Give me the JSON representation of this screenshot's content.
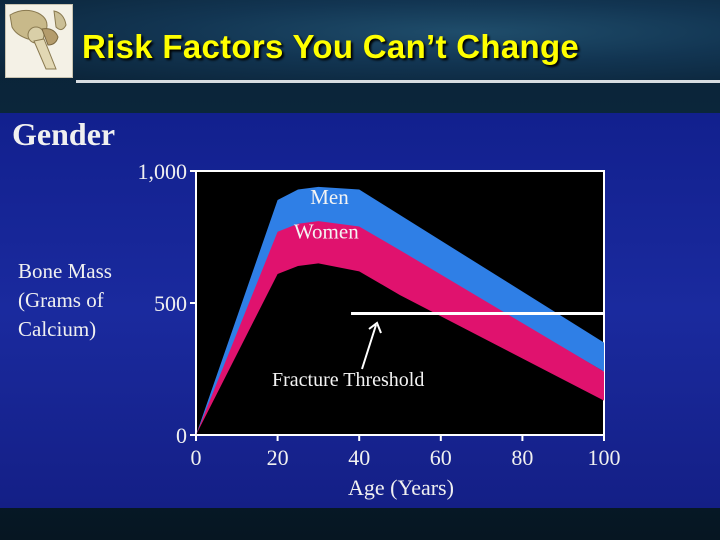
{
  "header": {
    "title": "Risk Factors You Can’t Change",
    "logo_icon": "hip-joint-icon"
  },
  "colors": {
    "title": "#ffff00",
    "panel_background": "#1a2a9e",
    "plot_background": "#000000",
    "men": "#2f7fe6",
    "women": "#e0126e",
    "threshold": "#ffffff"
  },
  "chart_data": {
    "type": "area",
    "title": "Gender",
    "xlabel": "Age (Years)",
    "ylabel_lines": [
      "Bone Mass",
      "(Grams of",
      "Calcium)"
    ],
    "xlim": [
      0,
      100
    ],
    "ylim": [
      0,
      1000
    ],
    "x_ticks": [
      0,
      20,
      40,
      60,
      80,
      100
    ],
    "y_ticks": [
      {
        "value": 0,
        "label": "0"
      },
      {
        "value": 500,
        "label": "500"
      },
      {
        "value": 1000,
        "label": "1,000"
      }
    ],
    "grid": false,
    "series": [
      {
        "name": "Men",
        "upper": [
          [
            0,
            0
          ],
          [
            20,
            890
          ],
          [
            25,
            930
          ],
          [
            30,
            940
          ],
          [
            40,
            930
          ],
          [
            100,
            350
          ]
        ],
        "lower": [
          [
            0,
            0
          ],
          [
            20,
            730
          ],
          [
            25,
            780
          ],
          [
            30,
            790
          ],
          [
            40,
            780
          ],
          [
            100,
            240
          ]
        ]
      },
      {
        "name": "Women",
        "upper": [
          [
            0,
            0
          ],
          [
            20,
            770
          ],
          [
            25,
            800
          ],
          [
            30,
            810
          ],
          [
            40,
            790
          ],
          [
            50,
            700
          ],
          [
            100,
            240
          ]
        ],
        "lower": [
          [
            0,
            0
          ],
          [
            20,
            610
          ],
          [
            25,
            640
          ],
          [
            30,
            650
          ],
          [
            40,
            620
          ],
          [
            50,
            530
          ],
          [
            100,
            130
          ]
        ]
      }
    ],
    "threshold": {
      "label": "Fracture Threshold",
      "value": 460,
      "x_start": 38,
      "x_end": 100
    }
  }
}
